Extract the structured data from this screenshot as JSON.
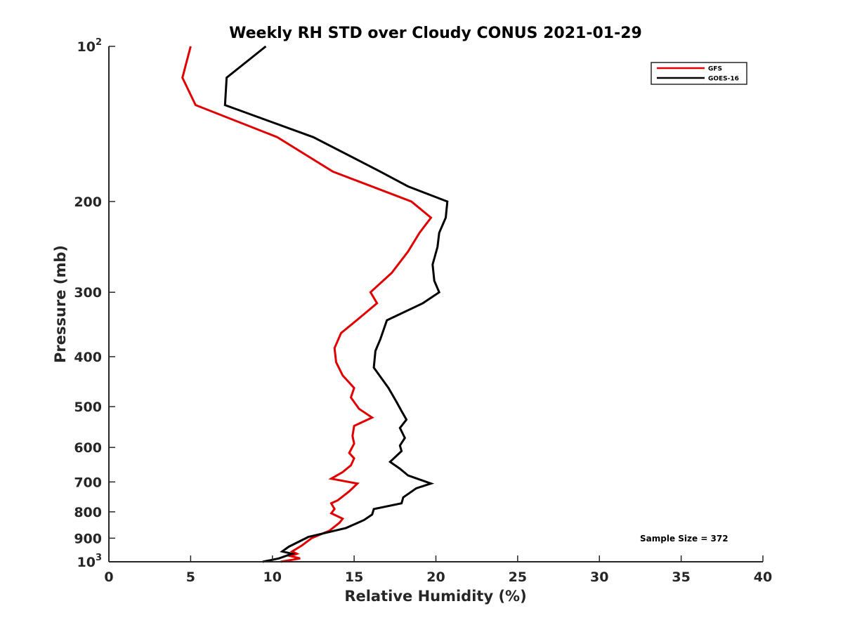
{
  "chart_data": {
    "type": "line",
    "title": "Weekly RH STD over Cloudy CONUS 2021-01-29",
    "xlabel": "Relative Humidity (%)",
    "ylabel": "Pressure (mb)",
    "xlim": [
      0,
      40
    ],
    "ylim": [
      100,
      1000
    ],
    "yscale": "log",
    "y_reversed": true,
    "grid": false,
    "legend_position": "top-right",
    "x_ticks": [
      "0",
      "5",
      "10",
      "15",
      "20",
      "25",
      "30",
      "35",
      "40"
    ],
    "x_tick_values": [
      0,
      5,
      10,
      15,
      20,
      25,
      30,
      35,
      40
    ],
    "y_ticks": [
      {
        "value": 100,
        "base": "10",
        "exp": "2"
      },
      {
        "value": 200,
        "label": "200"
      },
      {
        "value": 300,
        "label": "300"
      },
      {
        "value": 400,
        "label": "400"
      },
      {
        "value": 500,
        "label": "500"
      },
      {
        "value": 600,
        "label": "600"
      },
      {
        "value": 700,
        "label": "700"
      },
      {
        "value": 800,
        "label": "800"
      },
      {
        "value": 900,
        "label": "900"
      },
      {
        "value": 1000,
        "base": "10",
        "exp": "3"
      }
    ],
    "series": [
      {
        "name": "GFS",
        "color": "#e00000",
        "points": [
          [
            5.0,
            100
          ],
          [
            4.5,
            115
          ],
          [
            5.3,
            130
          ],
          [
            10.3,
            150
          ],
          [
            13.7,
            175
          ],
          [
            18.5,
            200
          ],
          [
            19.7,
            215
          ],
          [
            19.0,
            230
          ],
          [
            18.3,
            250
          ],
          [
            17.3,
            275
          ],
          [
            16.0,
            300
          ],
          [
            16.4,
            315
          ],
          [
            15.4,
            335
          ],
          [
            14.2,
            360
          ],
          [
            13.8,
            385
          ],
          [
            13.9,
            410
          ],
          [
            14.3,
            435
          ],
          [
            15.0,
            460
          ],
          [
            14.8,
            480
          ],
          [
            15.3,
            505
          ],
          [
            16.1,
            525
          ],
          [
            15.0,
            545
          ],
          [
            14.9,
            570
          ],
          [
            15.0,
            590
          ],
          [
            14.7,
            615
          ],
          [
            15.0,
            630
          ],
          [
            14.8,
            650
          ],
          [
            14.3,
            670
          ],
          [
            13.6,
            690
          ],
          [
            15.2,
            705
          ],
          [
            14.7,
            730
          ],
          [
            14.0,
            760
          ],
          [
            13.6,
            770
          ],
          [
            13.8,
            790
          ],
          [
            13.6,
            805
          ],
          [
            14.3,
            825
          ],
          [
            14.1,
            840
          ],
          [
            13.5,
            870
          ],
          [
            12.4,
            900
          ],
          [
            11.8,
            930
          ],
          [
            11.2,
            955
          ],
          [
            11.5,
            965
          ],
          [
            11.1,
            975
          ],
          [
            11.7,
            985
          ],
          [
            10.5,
            1000
          ]
        ]
      },
      {
        "name": "GOES-16",
        "color": "#000000",
        "points": [
          [
            9.6,
            100
          ],
          [
            7.2,
            115
          ],
          [
            7.1,
            130
          ],
          [
            12.5,
            150
          ],
          [
            16.6,
            175
          ],
          [
            18.3,
            187
          ],
          [
            20.7,
            200
          ],
          [
            20.6,
            215
          ],
          [
            20.2,
            230
          ],
          [
            20.1,
            245
          ],
          [
            19.8,
            265
          ],
          [
            19.9,
            285
          ],
          [
            20.2,
            300
          ],
          [
            19.2,
            315
          ],
          [
            17.0,
            340
          ],
          [
            16.6,
            370
          ],
          [
            16.3,
            390
          ],
          [
            16.2,
            420
          ],
          [
            17.1,
            460
          ],
          [
            17.6,
            490
          ],
          [
            17.9,
            510
          ],
          [
            18.2,
            530
          ],
          [
            17.8,
            550
          ],
          [
            18.1,
            575
          ],
          [
            17.8,
            595
          ],
          [
            17.9,
            610
          ],
          [
            17.2,
            640
          ],
          [
            17.8,
            660
          ],
          [
            18.3,
            680
          ],
          [
            19.7,
            705
          ],
          [
            18.8,
            720
          ],
          [
            18.0,
            750
          ],
          [
            17.9,
            770
          ],
          [
            16.2,
            790
          ],
          [
            16.1,
            810
          ],
          [
            15.6,
            830
          ],
          [
            14.5,
            860
          ],
          [
            12.2,
            895
          ],
          [
            11.0,
            935
          ],
          [
            10.6,
            955
          ],
          [
            11.2,
            965
          ],
          [
            10.4,
            985
          ],
          [
            9.4,
            1000
          ]
        ]
      }
    ],
    "annotations": [
      {
        "text": "Sample Size = 372",
        "x": 32.5,
        "y": 900
      }
    ]
  }
}
